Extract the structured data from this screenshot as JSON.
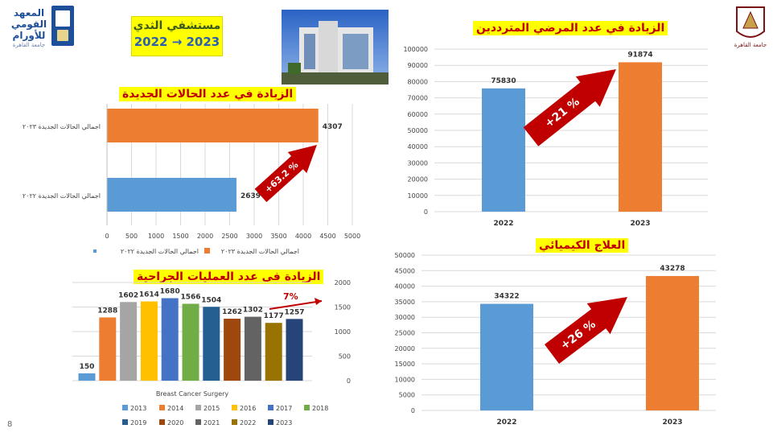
{
  "header": {
    "hospital_title": "مستشفي الثدي",
    "years_title": "2022 → 2023",
    "page_number": "8"
  },
  "logos": {
    "left_logo_text_1": "المعهد",
    "left_logo_text_2": "القومي",
    "left_logo_text_3": "للأورام",
    "left_logo_text_4": "جامعة القاهرة",
    "right_logo_text": "جامعة القاهرة"
  },
  "colors": {
    "blue": "#5b9bd5",
    "orange": "#ed7d31",
    "arrow_red": "#c00000",
    "highlight": "#ffff00"
  },
  "chart_data": [
    {
      "id": "new-cases",
      "type": "bar",
      "orientation": "horizontal",
      "title": "الزيادة في عدد الحالات الجديدة",
      "categories": [
        "اجمالي الحالات الجديدة ٢٠٢٢",
        "اجمالي الحالات الجديدة ٢٠٢٣"
      ],
      "values": [
        2639,
        4307
      ],
      "legend": [
        "اجمالي الحالات الجديدة ٢٠٢٢",
        "اجمالي الحالات الجديدة ٢٠٢٣"
      ],
      "xlim": [
        0,
        5000
      ],
      "xticks": [
        0,
        500,
        1000,
        1500,
        2000,
        2500,
        3000,
        3500,
        4000,
        4500,
        5000
      ],
      "annotation": "+63.2 %",
      "legend_position": "bottom",
      "grid": true
    },
    {
      "id": "outpatients",
      "type": "bar",
      "title": "الزيادة في عدد  المرضي المترددين",
      "categories": [
        "2022",
        "2023"
      ],
      "values": [
        75830,
        91874
      ],
      "ylim": [
        0,
        100000
      ],
      "yticks": [
        0,
        10000,
        20000,
        30000,
        40000,
        50000,
        60000,
        70000,
        80000,
        90000,
        100000
      ],
      "annotation": "+21 %",
      "grid": true
    },
    {
      "id": "surgeries",
      "type": "bar",
      "title": "الزيادة في عدد العمليات الجراحية",
      "xlabel": "Breast Cancer Surgery",
      "categories": [
        "2013",
        "2014",
        "2015",
        "2016",
        "2017",
        "2018",
        "2019",
        "2020",
        "2021",
        "2022",
        "2023"
      ],
      "values": [
        150,
        1288,
        1602,
        1614,
        1680,
        1566,
        1504,
        1262,
        1302,
        1177,
        1257
      ],
      "series_colors": [
        "#5b9bd5",
        "#ed7d31",
        "#a5a5a5",
        "#ffc000",
        "#4472c4",
        "#70ad47",
        "#255e91",
        "#9e480e",
        "#636363",
        "#997300",
        "#264478"
      ],
      "ylim": [
        0,
        2000
      ],
      "yticks": [
        0,
        500,
        1000,
        1500,
        2000
      ],
      "annotation": "7%",
      "legend_position": "bottom",
      "grid": true
    },
    {
      "id": "chemotherapy",
      "type": "bar",
      "title": "العلاج الكيميائي",
      "categories": [
        "2022",
        "2023"
      ],
      "values": [
        34322,
        43278
      ],
      "ylim": [
        0,
        50000
      ],
      "yticks": [
        0,
        5000,
        10000,
        15000,
        20000,
        25000,
        30000,
        35000,
        40000,
        45000,
        50000
      ],
      "annotation": "+26 %",
      "grid": true
    }
  ]
}
